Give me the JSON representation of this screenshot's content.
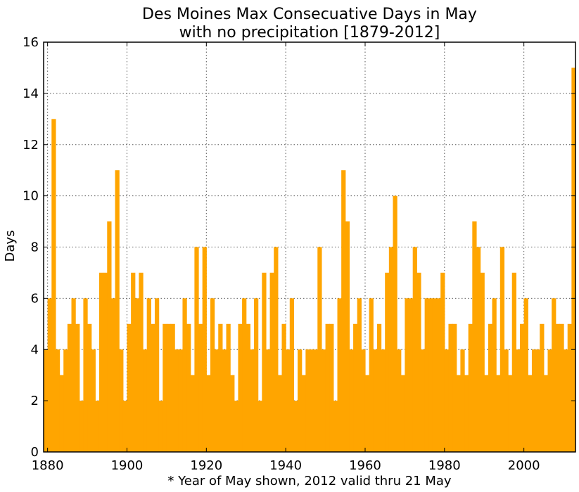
{
  "chart_data": {
    "type": "bar",
    "title_lines": [
      "Des Moines Max Consecuative Days in May",
      "with no precipitation [1879-2012]"
    ],
    "xlabel": "* Year of May shown, 2012 valid thru 21 May",
    "ylabel": "Days",
    "xlim": [
      1879,
      2013
    ],
    "ylim": [
      0,
      16
    ],
    "x_ticks": [
      1880,
      1900,
      1920,
      1940,
      1960,
      1980,
      2000
    ],
    "y_ticks": [
      0,
      2,
      4,
      6,
      8,
      10,
      12,
      14,
      16
    ],
    "grid": true,
    "bar_color": "#FFA500",
    "series": [
      {
        "x": [
          1879,
          1880,
          1881,
          1882,
          1883,
          1884,
          1885,
          1886,
          1887,
          1888,
          1889,
          1890,
          1891,
          1892,
          1893,
          1894,
          1895,
          1896,
          1897,
          1898,
          1899,
          1900,
          1901,
          1902,
          1903,
          1904,
          1905,
          1906,
          1907,
          1908,
          1909,
          1910,
          1911,
          1912,
          1913,
          1914,
          1915,
          1916,
          1917,
          1918,
          1919,
          1920,
          1921,
          1922,
          1923,
          1924,
          1925,
          1926,
          1927,
          1928,
          1929,
          1930,
          1931,
          1932,
          1933,
          1934,
          1935,
          1936,
          1937,
          1938,
          1939,
          1940,
          1941,
          1942,
          1943,
          1944,
          1945,
          1946,
          1947,
          1948,
          1949,
          1950,
          1951,
          1952,
          1953,
          1954,
          1955,
          1956,
          1957,
          1958,
          1959,
          1960,
          1961,
          1962,
          1963,
          1964,
          1965,
          1966,
          1967,
          1968,
          1969,
          1970,
          1971,
          1972,
          1973,
          1974,
          1975,
          1976,
          1977,
          1978,
          1979,
          1980,
          1981,
          1982,
          1983,
          1984,
          1985,
          1986,
          1987,
          1988,
          1989,
          1990,
          1991,
          1992,
          1993,
          1994,
          1995,
          1996,
          1997,
          1998,
          1999,
          2000,
          2001,
          2002,
          2003,
          2004,
          2005,
          2006,
          2007,
          2008,
          2009,
          2010,
          2011,
          2012
        ],
        "values": [
          4,
          6,
          13,
          4,
          3,
          4,
          5,
          6,
          5,
          2,
          6,
          5,
          4,
          2,
          7,
          7,
          9,
          6,
          11,
          4,
          2,
          5,
          7,
          6,
          7,
          4,
          6,
          5,
          6,
          2,
          5,
          5,
          5,
          4,
          4,
          6,
          5,
          3,
          8,
          5,
          8,
          3,
          6,
          4,
          5,
          4,
          5,
          3,
          2,
          5,
          6,
          5,
          4,
          6,
          2,
          7,
          4,
          7,
          8,
          3,
          5,
          4,
          6,
          2,
          4,
          3,
          4,
          4,
          4,
          8,
          4,
          5,
          5,
          2,
          6,
          11,
          9,
          4,
          5,
          6,
          4,
          3,
          6,
          4,
          5,
          4,
          7,
          8,
          10,
          4,
          3,
          6,
          6,
          8,
          7,
          4,
          6,
          6,
          6,
          6,
          7,
          4,
          5,
          5,
          3,
          4,
          3,
          5,
          9,
          8,
          7,
          3,
          5,
          6,
          3,
          8,
          4,
          3,
          7,
          4,
          5,
          6,
          3,
          4,
          4,
          5,
          3,
          4,
          6,
          5,
          5,
          4,
          5,
          15
        ]
      }
    ]
  }
}
